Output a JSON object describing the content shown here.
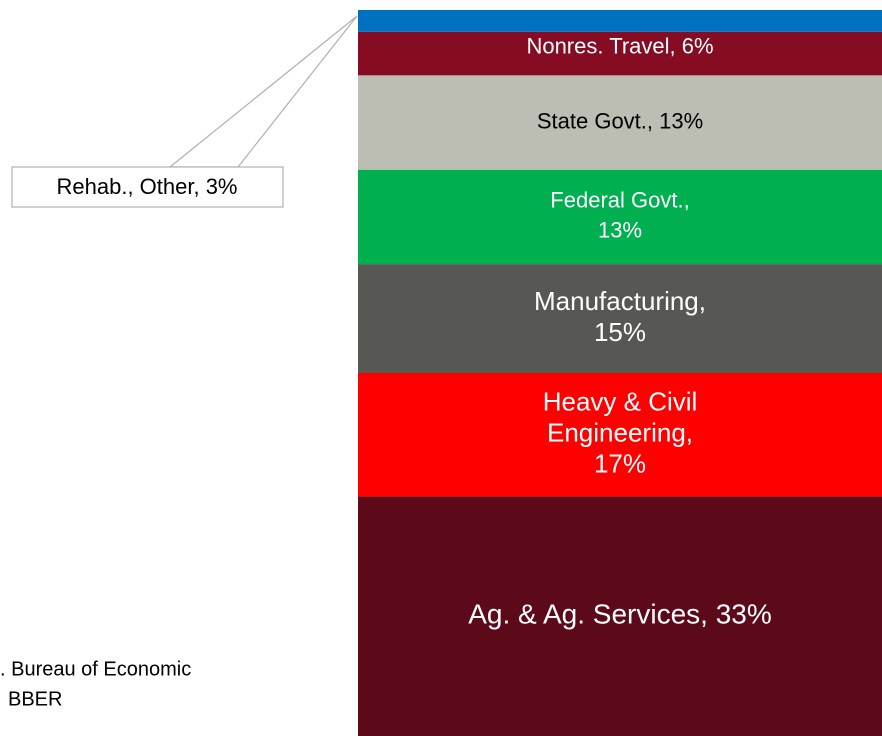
{
  "chart_data": {
    "type": "stacked_bar",
    "ylim": [
      0,
      100
    ],
    "series": [
      {
        "label_lines": [
          "Ag. & Ag. Services, 33%"
        ],
        "values": [
          33
        ],
        "color": "#5c0a1a",
        "text_color": "#ffffff"
      },
      {
        "label_lines": [
          "Heavy & Civil",
          "Engineering,",
          "17%"
        ],
        "values": [
          17
        ],
        "color": "#ff0000",
        "text_color": "#ffffff"
      },
      {
        "label_lines": [
          "Manufacturing,",
          "15%"
        ],
        "values": [
          15
        ],
        "color": "#575753",
        "text_color": "#ffffff"
      },
      {
        "label_lines": [
          "Federal Govt.,",
          "13%"
        ],
        "values": [
          13
        ],
        "color": "#00b050",
        "text_color": "#ffffff"
      },
      {
        "label_lines": [
          "State Govt., 13%"
        ],
        "values": [
          13
        ],
        "color": "#bcbdb3",
        "text_color": "#000000"
      },
      {
        "label_lines": [
          "Nonres. Travel, 6%"
        ],
        "values": [
          6
        ],
        "color": "#850c22",
        "text_color": "#ffffff"
      },
      {
        "label_lines": [
          "Rehab., Other, 3%"
        ],
        "values": [
          3
        ],
        "color": "#0070c0",
        "text_color": "#000000",
        "callout": true
      }
    ],
    "source_lines": [
      ". Bureau of Economic",
      "BBER"
    ]
  }
}
